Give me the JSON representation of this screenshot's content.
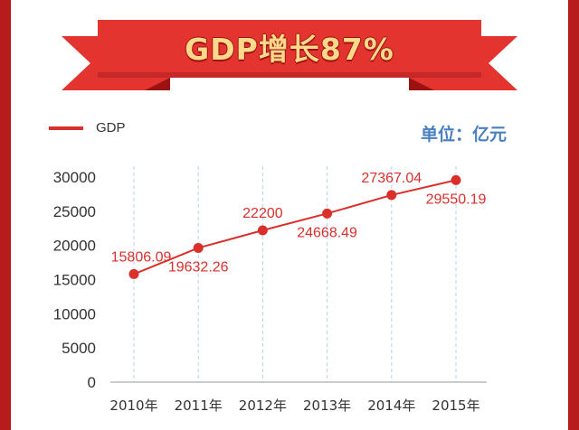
{
  "banner": {
    "title": "GDP增长87%",
    "color": "#e3342f",
    "shade_color": "#9c1111",
    "text_color": "#ffd98a"
  },
  "unit_label": "单位：亿元",
  "colors": {
    "frame": "#b71c1c",
    "series": "#d9302c",
    "grid": "#b5d3ef",
    "axis_text": "#333333",
    "unit_text": "#4a7fc0"
  },
  "chart_data": {
    "type": "line",
    "title": "",
    "xlabel": "",
    "ylabel": "",
    "categories": [
      "2010年",
      "2011年",
      "2012年",
      "2013年",
      "2014年",
      "2015年"
    ],
    "series": [
      {
        "name": "GDP",
        "values": [
          15806.09,
          19632.26,
          22200,
          24668.49,
          27367.04,
          29550.19
        ],
        "labels": [
          "15806.09",
          "19632.26",
          "22200",
          "24668.49",
          "27367.04",
          "29550.19"
        ],
        "label_positions": [
          "above",
          "below",
          "above",
          "below",
          "above",
          "below"
        ]
      }
    ],
    "ylim": [
      0,
      30000
    ],
    "yticks": [
      0,
      5000,
      10000,
      15000,
      20000,
      25000,
      30000
    ],
    "grid": "vertical-dashed",
    "legend": "top-left"
  }
}
